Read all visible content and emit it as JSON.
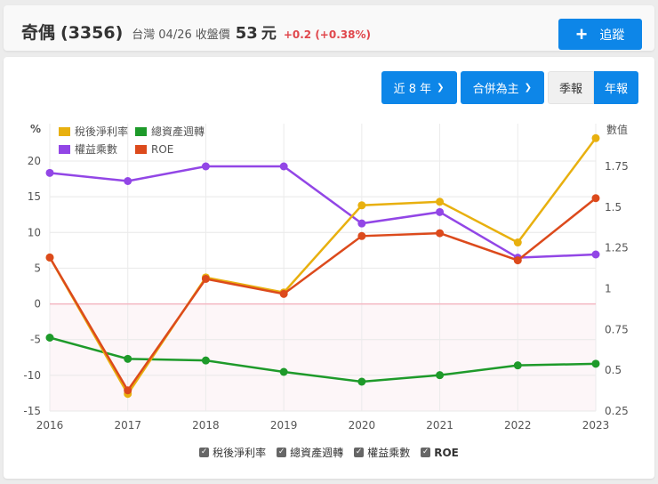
{
  "header": {
    "stock_name": "奇偶",
    "stock_code": "(3356)",
    "market": "台灣",
    "date": "04/26",
    "close_label": "收盤價",
    "price": "53",
    "unit": "元",
    "change": "+0.2 (+0.38%)",
    "track_button": {
      "icon": "plus-icon",
      "label": "追蹤"
    }
  },
  "controls": {
    "period_dropdown": "近 8 年",
    "consolidation_dropdown": "合併為主",
    "report_toggle": [
      {
        "label": "季報",
        "active": false
      },
      {
        "label": "年報",
        "active": true
      }
    ]
  },
  "colors": {
    "accent": "#0d86e8",
    "price_change": "#e0474c",
    "net_margin": "#e8b00f",
    "asset_turnover": "#1e9a2a",
    "equity_multiplier": "#9246e6",
    "roe": "#dc4a1c",
    "zero_line": "#f4b6c2"
  },
  "chart_data": {
    "type": "line",
    "title": "",
    "x": [
      "2016",
      "2017",
      "2018",
      "2019",
      "2020",
      "2021",
      "2022",
      "2023"
    ],
    "y_left": {
      "label": "%",
      "ticks": [
        "20",
        "15",
        "10",
        "5",
        "0",
        "-5",
        "-10",
        "-15"
      ],
      "range": [
        -15,
        20
      ]
    },
    "y_right": {
      "label": "數值",
      "ticks": [
        "1.75",
        "1.5",
        "1.25",
        "1",
        "0.75",
        "0.5",
        "0.25"
      ],
      "range": [
        0.25,
        1.75
      ]
    },
    "grid": true,
    "legend_position": "top-left",
    "series": [
      {
        "name": "稅後淨利率",
        "axis": "left",
        "color": "#e8b00f",
        "values": [
          6.5,
          -12.6,
          3.7,
          1.6,
          13.8,
          14.3,
          8.6,
          23.2
        ]
      },
      {
        "name": "總資產週轉",
        "axis": "right",
        "color": "#1e9a2a",
        "values": [
          0.7,
          0.57,
          0.56,
          0.49,
          0.43,
          0.47,
          0.53,
          0.54
        ]
      },
      {
        "name": "權益乘數",
        "axis": "right",
        "color": "#9246e6",
        "values": [
          1.71,
          1.66,
          1.75,
          1.75,
          1.4,
          1.47,
          1.19,
          1.21
        ]
      },
      {
        "name": "ROE",
        "axis": "left",
        "color": "#dc4a1c",
        "values": [
          6.5,
          -12.1,
          3.5,
          1.4,
          9.5,
          9.9,
          6.1,
          14.8
        ]
      }
    ]
  },
  "toggles": [
    {
      "label": "稅後淨利率",
      "checked": true
    },
    {
      "label": "總資產週轉",
      "checked": true
    },
    {
      "label": "權益乘數",
      "checked": true
    },
    {
      "label": "ROE",
      "checked": true
    }
  ]
}
